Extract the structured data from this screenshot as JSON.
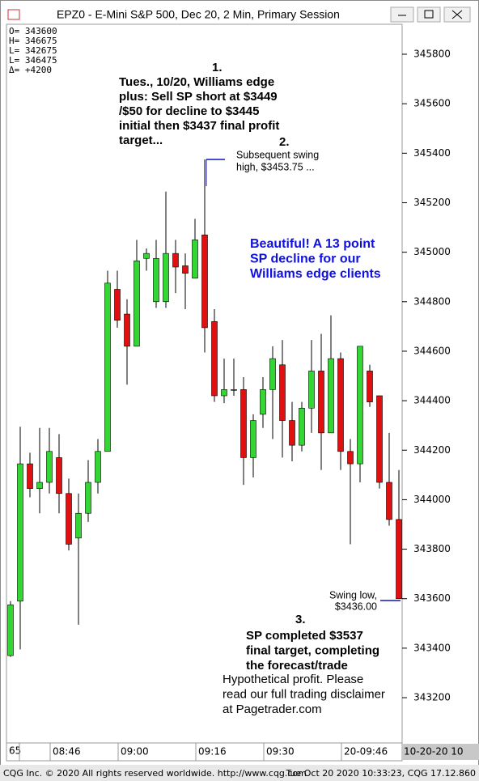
{
  "window_title": "EPZ0 - E-Mini S&P 500, Dec 20, 2 Min, Primary Session",
  "footer_left": "CQG Inc. © 2020 All rights reserved worldwide. http://www.cqg.com",
  "footer_right": "Tue Oct 20 2020 10:33:23, CQG 17.12.860",
  "info": [
    "O= 343600",
    "H= 346675",
    "L= 342675",
    "L= 346475",
    "Δ=   +4200"
  ],
  "annotations": [
    {
      "lines": [
        "1."
      ]
    },
    {
      "lines": [
        "Tues., 10/20, Williams edge",
        "plus: Sell SP short at $3449",
        "/$50 for decline to $3445",
        "initial then $3437 final profit",
        "target..."
      ]
    },
    {
      "lines": [
        "2."
      ]
    },
    {
      "lines": [
        "Subsequent swing",
        "high, $3453.75 ..."
      ]
    },
    {
      "lines": [
        "Beautiful! A 13 point",
        "SP decline for our",
        "Williams edge clients"
      ]
    },
    {
      "lines": [
        "Swing low,",
        "$3436.00"
      ]
    },
    {
      "lines": [
        "3."
      ]
    },
    {
      "lines": [
        "SP completed $3537",
        "final target, completing",
        "the forecast/trade"
      ]
    },
    {
      "lines": [
        "Hypothetical profit. Please",
        "read our full trading disclaimer",
        "at Pagetrader.com"
      ]
    }
  ],
  "chart_data": {
    "type": "candlestick",
    "up_color": "#33d633",
    "down_color": "#e01010",
    "x_axis_start": "65",
    "x_axis_end": "10-20-20 10",
    "categories": [
      null,
      null,
      null,
      null,
      "08:46",
      null,
      null,
      null,
      null,
      null,
      null,
      "09:00",
      null,
      null,
      null,
      null,
      null,
      null,
      null,
      "09:16",
      null,
      null,
      null,
      null,
      null,
      null,
      "09:30",
      null,
      null,
      null,
      null,
      null,
      null,
      null,
      "20-09:46",
      null,
      null,
      null,
      null,
      null,
      null
    ],
    "open": [
      343370,
      343590,
      344145,
      344045,
      344070,
      344170,
      344025,
      343845,
      343945,
      344070,
      344195,
      344850,
      344750,
      344620,
      344975,
      344800,
      344800,
      344995,
      344945,
      344895,
      345070,
      344720,
      344420,
      344445,
      344445,
      344170,
      344345,
      344445,
      344545,
      344320,
      344220,
      344370,
      344520,
      344270,
      344570,
      344195,
      344145,
      344520,
      344420,
      344070,
      343920
    ],
    "high": [
      343590,
      344295,
      344190,
      344290,
      344290,
      344265,
      344085,
      344025,
      344160,
      344245,
      344925,
      344925,
      344810,
      345050,
      345015,
      345050,
      345245,
      345050,
      344995,
      345135,
      345375,
      344770,
      344570,
      344570,
      344495,
      344345,
      344495,
      344620,
      344645,
      344395,
      344395,
      344645,
      344670,
      344745,
      344595,
      344245,
      344620,
      344545,
      344420,
      344270,
      344120
    ],
    "low": [
      343365,
      343395,
      344010,
      343945,
      344025,
      343945,
      343795,
      343495,
      343910,
      344025,
      344195,
      344695,
      344465,
      344620,
      344925,
      344775,
      344775,
      344835,
      344770,
      344895,
      344595,
      344395,
      344390,
      344420,
      344060,
      344090,
      344290,
      344245,
      344170,
      344155,
      344195,
      344270,
      344120,
      344270,
      344120,
      343820,
      344070,
      344375,
      344045,
      343895,
      343600
    ],
    "close": [
      343575,
      344145,
      344045,
      344070,
      344195,
      344025,
      343820,
      343945,
      344070,
      344195,
      344875,
      344725,
      344620,
      344965,
      344995,
      344975,
      344995,
      344940,
      344915,
      345050,
      344695,
      344420,
      344445,
      344445,
      344170,
      344320,
      344445,
      344570,
      344320,
      344220,
      344370,
      344520,
      344270,
      344570,
      344195,
      344145,
      344620,
      344395,
      344070,
      343920,
      343600
    ],
    "ylim": [
      343017,
      345921
    ],
    "yticks": [
      343200,
      343400,
      343600,
      343800,
      344000,
      344200,
      344400,
      344600,
      344800,
      345000,
      345200,
      345400,
      345600,
      345800
    ]
  }
}
